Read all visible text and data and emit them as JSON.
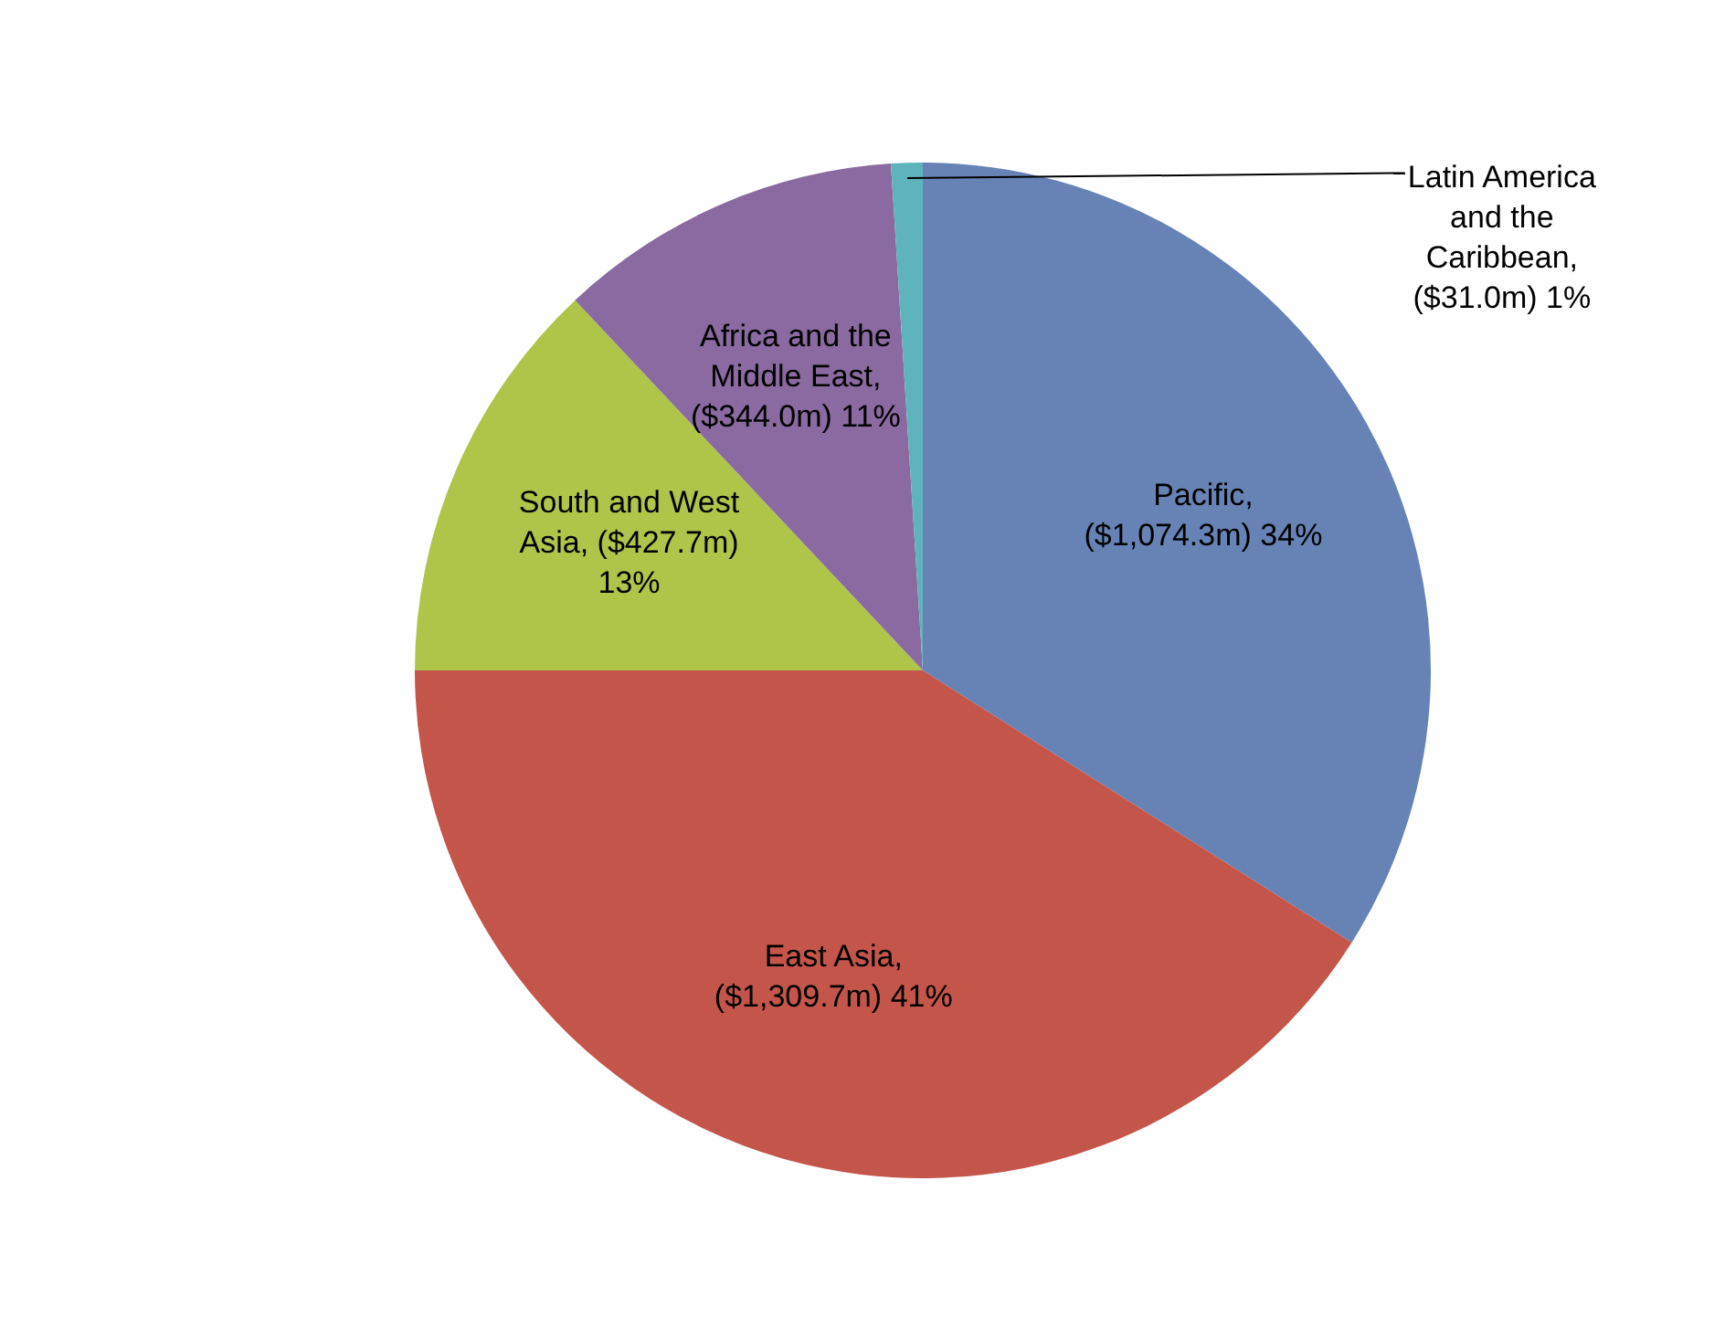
{
  "chart_data": {
    "type": "pie",
    "categories": [
      "Pacific",
      "East Asia",
      "South and West Asia",
      "Africa and the Middle East",
      "Latin America and the Caribbean"
    ],
    "values": [
      34,
      41,
      13,
      11,
      1
    ],
    "value_labels": [
      ", ($1,074.3m) 34%",
      ", ($1,309.7m) 41%",
      ", ($427.7m) 13%",
      ", ($344.0m) 11%",
      ", ($31.0m) 1%"
    ],
    "colors": [
      "#6783b5",
      "#c4554a",
      "#aec54a",
      "#8a6aa0",
      "#5fb3bc"
    ]
  }
}
